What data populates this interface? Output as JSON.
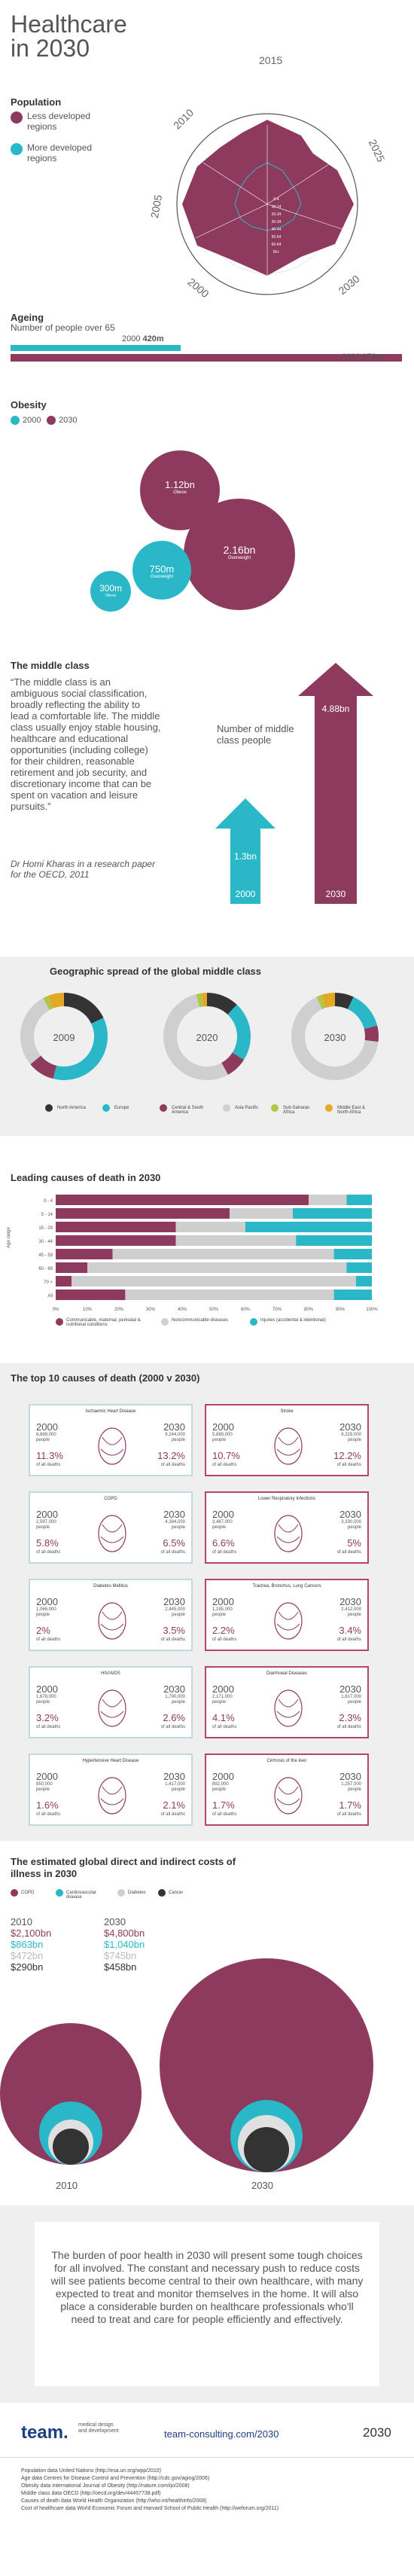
{
  "colors": {
    "maroon": "#8e3a5e",
    "teal": "#2ab8c8",
    "grey": "#cfcfcf",
    "dark": "#333333",
    "green": "#aec94a",
    "purple": "#7a3a8c",
    "yellow": "#e3a825"
  },
  "header": {
    "title": "Healthcare",
    "title_line2": "in 2030"
  },
  "population": {
    "heading": "Population",
    "legend_less": "Less developed regions",
    "legend_more": "More developed regions",
    "years": [
      "2015",
      "2025",
      "2030",
      "2000",
      "2005",
      "2010"
    ],
    "age_labels": [
      "0-4",
      "5-9",
      "10-14",
      "15-19",
      "20-24",
      "25-29",
      "30-34",
      "35-39",
      "40-44",
      "45-49",
      "50-54",
      "55-59",
      "60-64",
      "65+"
    ]
  },
  "ageing": {
    "heading": "Ageing",
    "subheading": "Number of people over 65",
    "y2000": "2000",
    "v2000": "420m",
    "y2030": "2030",
    "v2030": "973m",
    "value_2000": 420,
    "value_2030": 973
  },
  "obesity": {
    "heading": "Obesity",
    "legend_2000": "2000",
    "legend_2030": "2030",
    "bubbles": [
      {
        "value": "1.12bn",
        "label": "Obese"
      },
      {
        "value": "2.16bn",
        "label": "Overweight"
      },
      {
        "value": "300m",
        "label": "Obese"
      },
      {
        "value": "750m",
        "label": "Overweight"
      }
    ]
  },
  "middle_class": {
    "heading": "The middle class",
    "quote": "“The middle class is an ambiguous social classification, broadly reflecting the ability to lead a comfortable life. The middle class usually enjoy stable housing, healthcare and educational opportunities (including college) for their children, reasonable retirement and job security, and discretionary income that can be spent on vacation and leisure pursuits.”",
    "attribution": "Dr Homi Kharas in a research paper for the OECD, 2011",
    "chart_label": "Number of middle class people",
    "v2000": "1.3bn",
    "v2030": "4.88bn",
    "y2000": "2000",
    "y2030": "2030"
  },
  "spread": {
    "heading": "Geographic spread of the global middle class",
    "years": [
      "2009",
      "2020",
      "2030"
    ],
    "legend": [
      "North America",
      "Europe",
      "Central & South America",
      "Asia Pacific",
      "Sub-Saharan Africa",
      "Middle East & North Africa"
    ],
    "donut_values": [
      [
        18,
        36,
        10,
        28,
        2,
        6
      ],
      [
        12,
        22,
        8,
        54,
        2,
        2
      ],
      [
        7,
        14,
        6,
        66,
        2,
        5
      ]
    ]
  },
  "causes": {
    "heading": "Leading causes of death in 2030",
    "y_axis_label": "Age range",
    "rows": [
      "0 - 4",
      "5 - 14",
      "15 - 29",
      "30 - 44",
      "45 - 59",
      "60 - 69",
      "70 +",
      "All"
    ],
    "x_ticks": [
      "0%",
      "10%",
      "20%",
      "30%",
      "40%",
      "50%",
      "60%",
      "70%",
      "80%",
      "90%",
      "100%"
    ],
    "legend": [
      "Communicable, maternal, perinatal & nutritional conditions",
      "Noncommunicable diseases",
      "Injuries (accidental & intentional)"
    ]
  },
  "top10": {
    "heading": "The top 10 causes of death (2000 v 2030)",
    "cards": [
      {
        "title": "Ischaemic Heart Disease",
        "y1": "2000",
        "p1": "6,889,000 people",
        "pct1": "11.3%",
        "y2": "2030",
        "p2": "9,244,000 people",
        "pct2": "13.2%",
        "of": "of all deaths"
      },
      {
        "title": "Stroke",
        "y1": "2000",
        "p1": "5,889,000 people",
        "pct1": "10.7%",
        "y2": "2030",
        "p2": "8,329,000 people",
        "pct2": "12.2%",
        "of": "of all deaths"
      },
      {
        "title": "COPD",
        "y1": "2000",
        "p1": "2,597,000 people",
        "pct1": "5.8%",
        "y2": "2030",
        "p2": "4,384,000 people",
        "pct2": "6.5%",
        "of": "of all deaths"
      },
      {
        "title": "Lower Respiratory Infections",
        "y1": "2000",
        "p1": "3,467,000 people",
        "pct1": "6.6%",
        "y2": "2030",
        "p2": "3,330,000 people",
        "pct2": "5%",
        "of": "of all deaths"
      },
      {
        "title": "Diabetes Mellitus",
        "y1": "2000",
        "p1": "1,066,000 people",
        "pct1": "2%",
        "y2": "2030",
        "p2": "2,445,000 people",
        "pct2": "3.5%",
        "of": "of all deaths"
      },
      {
        "title": "Trachea, Bronchus, Lung Cancers",
        "y1": "2000",
        "p1": "1,185,000 people",
        "pct1": "2.2%",
        "y2": "2030",
        "p2": "2,412,000 people",
        "pct2": "3.4%",
        "of": "of all deaths"
      },
      {
        "title": "HIV/AIDS",
        "y1": "2000",
        "p1": "1,678,000 people",
        "pct1": "3.2%",
        "y2": "2030",
        "p2": "1,790,000 people",
        "pct2": "2.6%",
        "of": "of all deaths"
      },
      {
        "title": "Diarrhoeal Diseases",
        "y1": "2000",
        "p1": "2,171,000 people",
        "pct1": "4.1%",
        "y2": "2030",
        "p2": "1,617,000 people",
        "pct2": "2.3%",
        "of": "of all deaths"
      },
      {
        "title": "Hypertensive Heart Disease",
        "y1": "2000",
        "p1": "850,000 people",
        "pct1": "1.6%",
        "y2": "2030",
        "p2": "1,417,000 people",
        "pct2": "2.1%",
        "of": "of all deaths"
      },
      {
        "title": "Cirrhosis of the liver",
        "y1": "2000",
        "p1": "892,000 people",
        "pct1": "1.7%",
        "y2": "2030",
        "p2": "1,257,000 people",
        "pct2": "1.7%",
        "of": "of all deaths"
      }
    ]
  },
  "costs": {
    "heading": "The estimated global direct and indirect costs of illness in 2030",
    "legend": [
      "COPD",
      "Cardiovascular disease",
      "Diabetes",
      "Cancer"
    ],
    "y2010": "2010",
    "y2030": "2030",
    "col2010": [
      "$2,100bn",
      "$863bn",
      "$472bn",
      "$290bn"
    ],
    "col2030": [
      "$4,800bn",
      "$1,040bn",
      "$745bn",
      "$458bn"
    ]
  },
  "closing": {
    "text": "The burden of poor health in 2030 will present some tough choices for all involved. The constant and necessary push to reduce costs will see patients become central to their own healthcare, with many expected to treat and monitor themselves in the home. It will also place a considerable burden on healthcare professionals who'll need to treat and care for people efficiently and effectively."
  },
  "footer": {
    "logo": "team.",
    "tagline": "medical design and development",
    "url": "team-consulting.com/2030",
    "mark": "2030",
    "sources": [
      "Population data United Nations (http://esa.un.org/wpp/2010)",
      "Age data Centres for Disease Control and Prevention (http://cdc.gov/aging/2006)",
      "Obesity data International Journal of Obesity (http://nature.com/ijo/2008)",
      "Middle class data OECD (http://oecd.org/dev/44457738.pdf)",
      "Causes of death data World Health Organization (http://who.int/healthinfo/2008)",
      "Cost of healthcare data World Economic Forum and Harvard School of Public Health (http://weforum.org/2011)"
    ]
  }
}
